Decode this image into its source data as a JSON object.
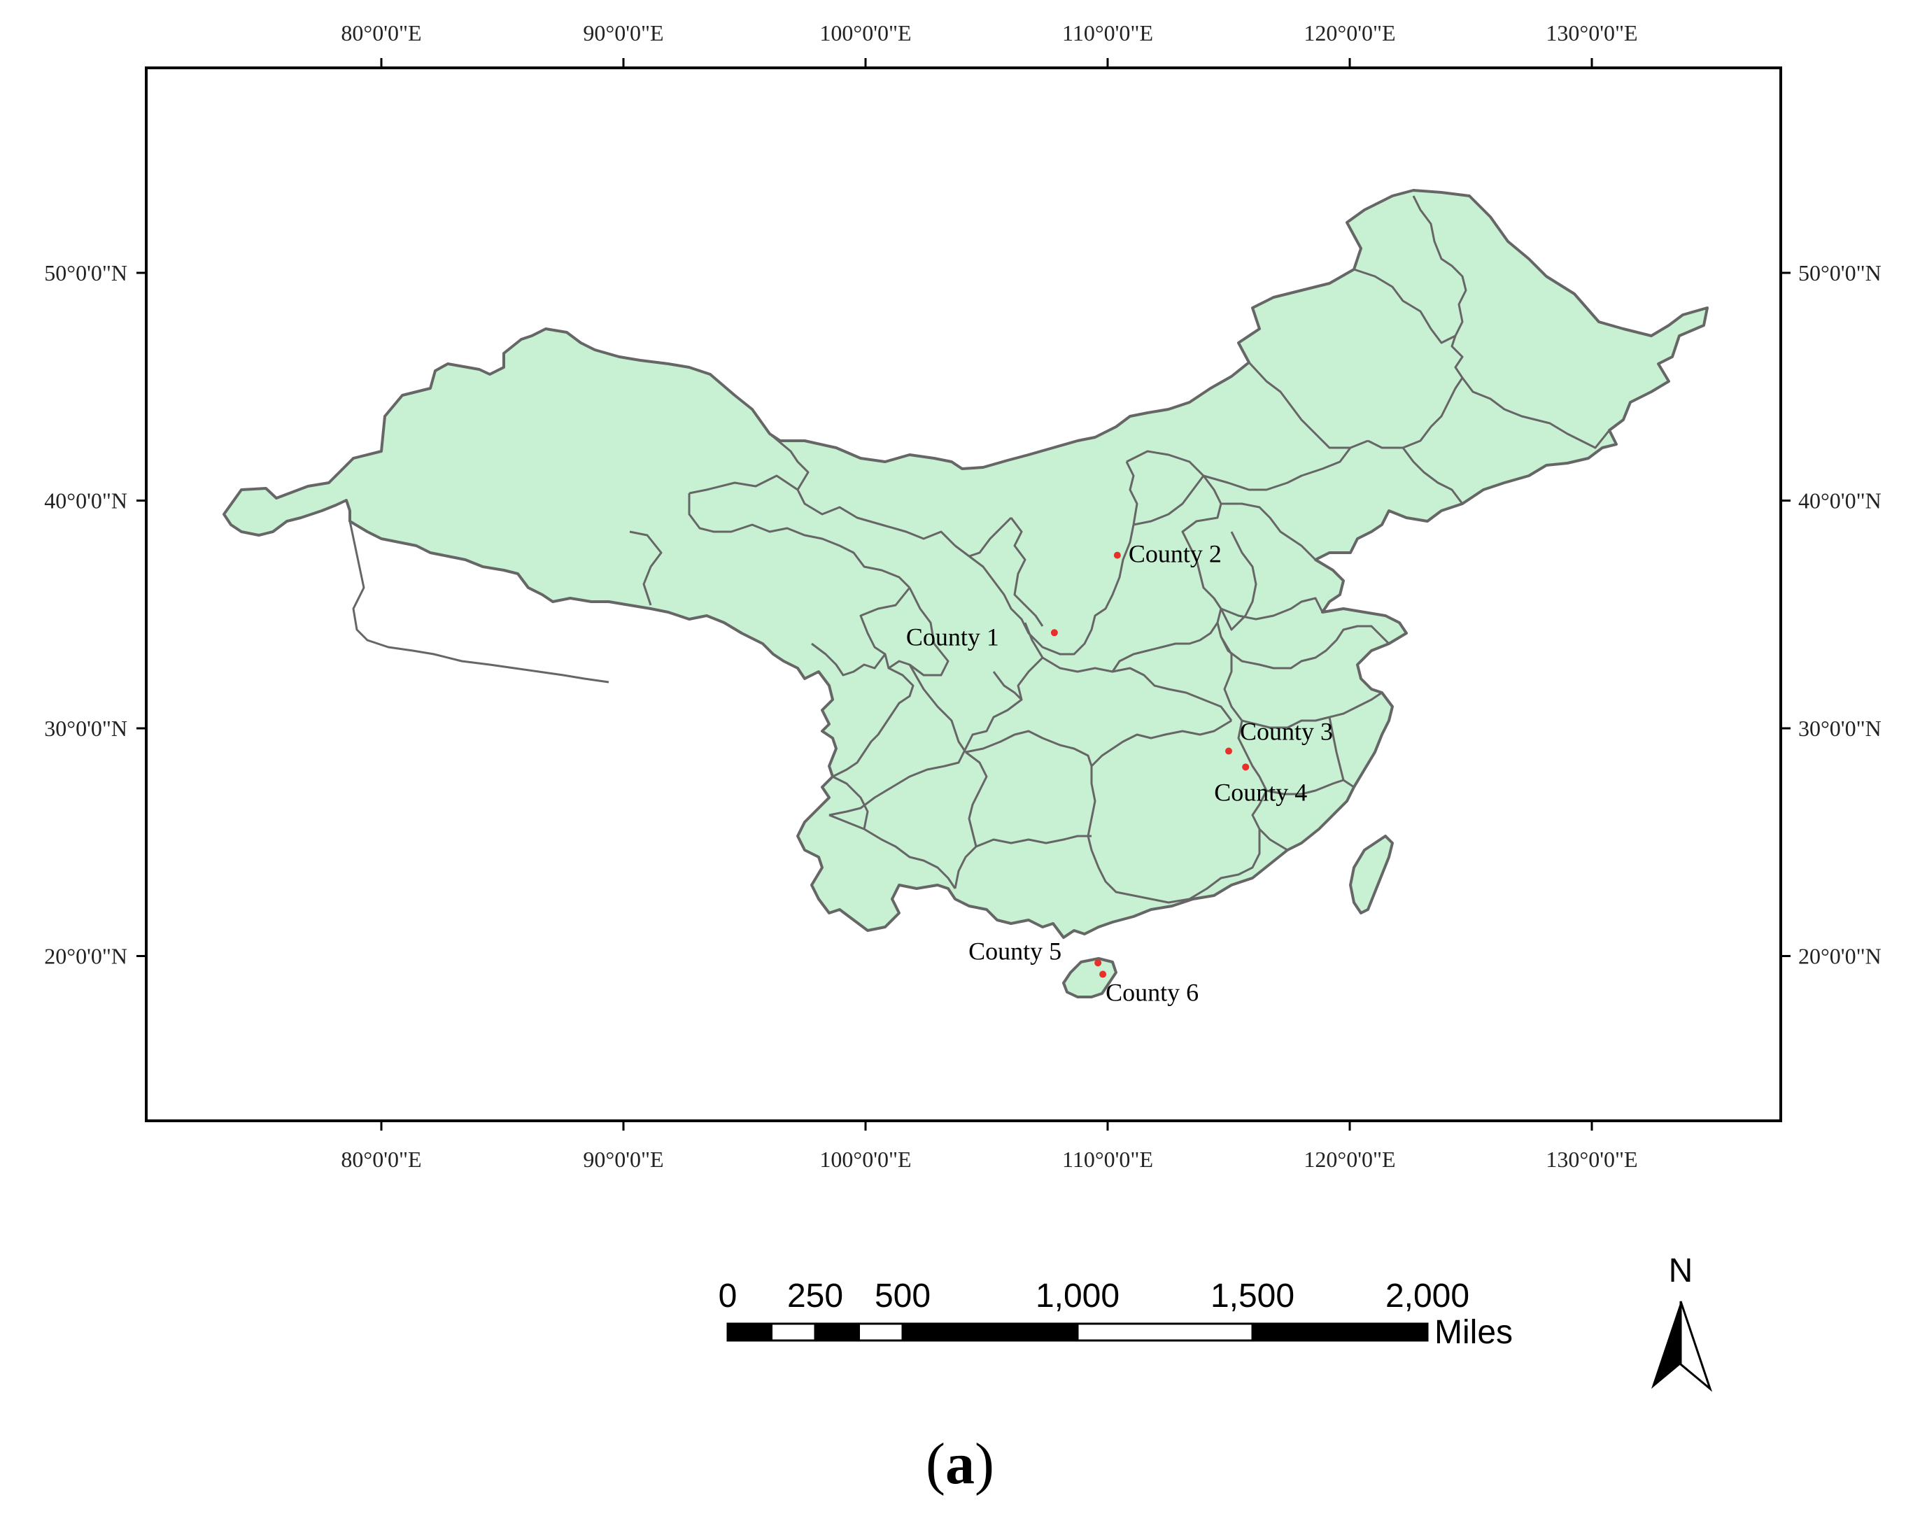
{
  "map": {
    "lon_labels": [
      "80°0'0\"E",
      "90°0'0\"E",
      "100°0'0\"E",
      "110°0'0\"E",
      "120°0'0\"E",
      "130°0'0\"E"
    ],
    "lon_values": [
      80,
      90,
      100,
      110,
      120,
      130
    ],
    "lat_labels": [
      "50°0'0\"N",
      "40°0'0\"N",
      "30°0'0\"N",
      "20°0'0\"N"
    ],
    "lat_values": [
      50,
      40,
      30,
      20
    ],
    "land_color": "#c8f0d2",
    "border_color": "#666666",
    "marker_color": "#e8302a",
    "counties": [
      {
        "label": "County 1",
        "lon": 107.8,
        "lat": 34.2
      },
      {
        "label": "County 2",
        "lon": 110.4,
        "lat": 37.6
      },
      {
        "label": "County 3",
        "lon": 115.0,
        "lat": 29.0
      },
      {
        "label": "County 4",
        "lon": 115.7,
        "lat": 28.3
      },
      {
        "label": "County 5",
        "lon": 109.6,
        "lat": 19.7
      },
      {
        "label": "County 6",
        "lon": 109.8,
        "lat": 19.2
      }
    ]
  },
  "scale_bar": {
    "labels": [
      "0",
      "250",
      "500",
      "1,000",
      "1,500",
      "2,000"
    ],
    "values": [
      0,
      250,
      500,
      1000,
      1500,
      2000
    ],
    "unit": "Miles"
  },
  "north_arrow": {
    "label": "N"
  },
  "caption": {
    "open": "(",
    "letter": "a",
    "close": ")"
  }
}
